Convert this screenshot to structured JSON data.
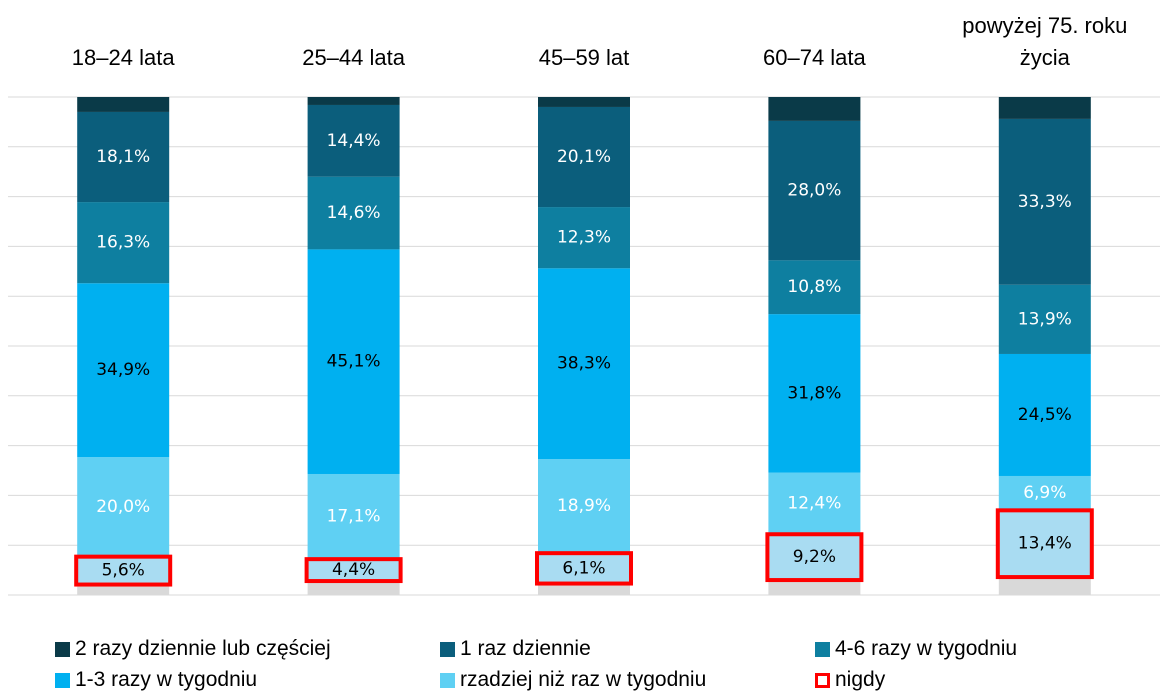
{
  "chart_data": {
    "type": "stacked_bar",
    "categories": [
      "18–24 lata",
      "25–44 lata",
      "45–59 lat",
      "60–74 lata",
      "powyżej 75. roku życia"
    ],
    "ylim": [
      0,
      100
    ],
    "yticks": [
      0,
      10,
      20,
      30,
      40,
      50,
      60,
      70,
      80,
      90,
      100
    ],
    "grid": true,
    "series": [
      {
        "name": "2 razy dziennie lub częściej",
        "color": "#0a3a48",
        "values": [
          3,
          1.6,
          2,
          4.8,
          4.4
        ]
      },
      {
        "name": "1 raz dziennie",
        "color": "#0b5e7c",
        "label_color": "#ffffff",
        "values": [
          18.1,
          14.4,
          20.1,
          28.0,
          33.3
        ],
        "value_labels": [
          "18,1%",
          "14,4%",
          "20,1%",
          "28,0%",
          "33,3%"
        ]
      },
      {
        "name": "4-6 razy w tygodniu",
        "color": "#0e7fa0",
        "label_color": "#ffffff",
        "values": [
          16.3,
          14.6,
          12.3,
          10.8,
          13.9
        ],
        "value_labels": [
          "16,3%",
          "14,6%",
          "12,3%",
          "10,8%",
          "13,9%"
        ]
      },
      {
        "name": "1-3 razy w tygodniu",
        "color": "#00b0f0",
        "label_color": "#000000",
        "values": [
          34.9,
          45.1,
          38.3,
          31.8,
          24.5
        ],
        "value_labels": [
          "34,9%",
          "45,1%",
          "38,3%",
          "31,8%",
          "24,5%"
        ]
      },
      {
        "name": "rzadziej niż raz w tygodniu",
        "color": "#5fd0f3",
        "label_color": "#ffffff",
        "values": [
          20.0,
          17.1,
          18.9,
          12.4,
          6.9
        ],
        "value_labels": [
          "20,0%",
          "17,1%",
          "18,9%",
          "12,4%",
          "6,9%"
        ]
      },
      {
        "name": "nigdy",
        "color": "#a9dcf2",
        "outline": "#ff0000",
        "label_color": "#000000",
        "values": [
          5.6,
          4.4,
          6.1,
          9.2,
          13.4
        ],
        "value_labels": [
          "5,6%",
          "4,4%",
          "6,1%",
          "9,2%",
          "13,4%"
        ]
      },
      {
        "color": "#d9d9d9",
        "values": [
          2.1,
          2.8,
          2.3,
          3,
          3.6
        ]
      }
    ]
  }
}
